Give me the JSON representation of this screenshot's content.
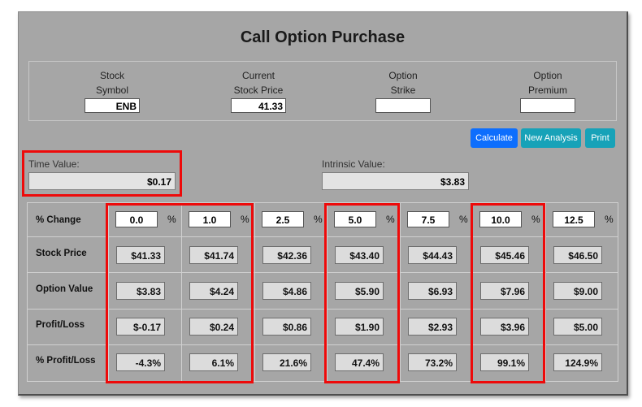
{
  "title": "Call Option Purchase",
  "inputs": [
    {
      "label_line1": "Stock",
      "label_line2": "Symbol",
      "value": "ENB"
    },
    {
      "label_line1": "Current",
      "label_line2": "Stock Price",
      "value": "41.33"
    },
    {
      "label_line1": "Option",
      "label_line2": "Strike",
      "value": ""
    },
    {
      "label_line1": "Option",
      "label_line2": "Premium",
      "value": ""
    }
  ],
  "buttons": {
    "calculate": "Calculate",
    "new_analysis": "New Analysis",
    "print": "Print"
  },
  "time_value": {
    "label": "Time Value:",
    "value": "$0.17"
  },
  "intrinsic_value": {
    "label": "Intrinsic Value:",
    "value": "$3.83"
  },
  "table": {
    "row_labels": [
      "% Change",
      "Stock Price",
      "Option Value",
      "Profit/Loss",
      "% Profit/Loss"
    ],
    "pct_symbol": "%",
    "columns": [
      {
        "change": "0.0",
        "stock_price": "$41.33",
        "option_value": "$3.83",
        "profit_loss": "$-0.17",
        "pct_profit_loss": "-4.3%"
      },
      {
        "change": "1.0",
        "stock_price": "$41.74",
        "option_value": "$4.24",
        "profit_loss": "$0.24",
        "pct_profit_loss": "6.1%"
      },
      {
        "change": "2.5",
        "stock_price": "$42.36",
        "option_value": "$4.86",
        "profit_loss": "$0.86",
        "pct_profit_loss": "21.6%"
      },
      {
        "change": "5.0",
        "stock_price": "$43.40",
        "option_value": "$5.90",
        "profit_loss": "$1.90",
        "pct_profit_loss": "47.4%"
      },
      {
        "change": "7.5",
        "stock_price": "$44.43",
        "option_value": "$6.93",
        "profit_loss": "$2.93",
        "pct_profit_loss": "73.2%"
      },
      {
        "change": "10.0",
        "stock_price": "$45.46",
        "option_value": "$7.96",
        "profit_loss": "$3.96",
        "pct_profit_loss": "99.1%"
      },
      {
        "change": "12.5",
        "stock_price": "$46.50",
        "option_value": "$9.00",
        "profit_loss": "$5.00",
        "pct_profit_loss": "124.9%"
      }
    ]
  },
  "colors": {
    "highlight": "#ee0a0a",
    "calculate_button": "#0d6efd",
    "secondary_buttons": "#17a2b8",
    "panel": "#a6a6a6"
  }
}
